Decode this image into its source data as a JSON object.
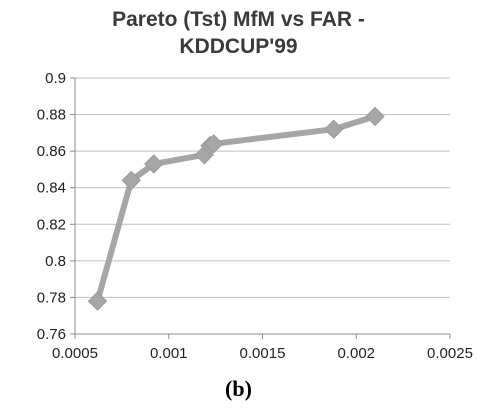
{
  "chart_data": {
    "type": "line",
    "title_lines": [
      "Pareto (Tst) MfM vs FAR -",
      "KDDCUP'99"
    ],
    "xlabel": "",
    "ylabel": "",
    "xlim": [
      0.0005,
      0.0025
    ],
    "ylim": [
      0.76,
      0.9
    ],
    "x_ticks": [
      "0.0005",
      "0.001",
      "0.0015",
      "0.002",
      "0.0025"
    ],
    "y_ticks": [
      "0.9",
      "0.88",
      "0.86",
      "0.84",
      "0.82",
      "0.8",
      "0.78",
      "0.76"
    ],
    "grid": "horizontal",
    "legend": "none",
    "series": [
      {
        "color": "#a6a6a6",
        "marker": "diamond",
        "x": [
          0.00062,
          0.0008,
          0.00092,
          0.00119,
          0.00122,
          0.00124,
          0.00188,
          0.0021
        ],
        "y": [
          0.778,
          0.844,
          0.853,
          0.858,
          0.863,
          0.864,
          0.872,
          0.879
        ]
      }
    ]
  },
  "caption": "(b)"
}
